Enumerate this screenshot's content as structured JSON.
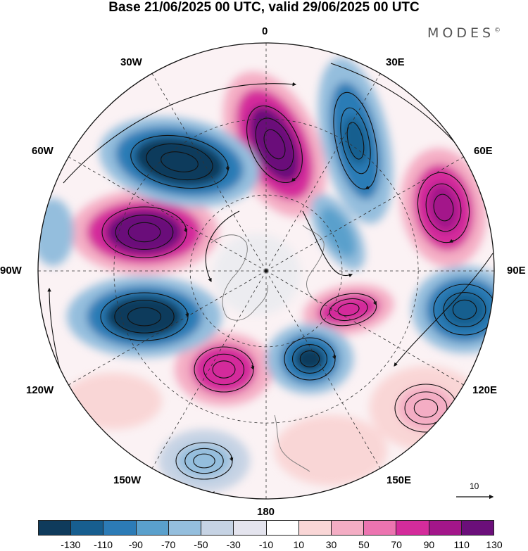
{
  "title": "Base 21/06/2025 00 UTC, valid 29/06/2025 00 UTC",
  "brand": "MODES",
  "brand_mark": "©",
  "longitude_labels": {
    "top": "0",
    "top_right": "30E",
    "upper_right": "60E",
    "right": "90E",
    "lower_right": "120E",
    "bottom_right": "150E",
    "bottom": "180",
    "bottom_left": "150W",
    "lower_left": "120W",
    "left": "90W",
    "upper_left": "60W",
    "top_left": "30W"
  },
  "reference_vector": {
    "label": "10"
  },
  "colorbar": {
    "colors": [
      "#0f3b5c",
      "#175e8f",
      "#2c7bb6",
      "#5aa0cc",
      "#94bedd",
      "#c6d3e4",
      "#e4e4ee",
      "#ffffff",
      "#f9d6d6",
      "#f4adc4",
      "#ec74b0",
      "#d42c9b",
      "#a3168a",
      "#6b0f7a"
    ],
    "ticks": [
      "-130",
      "-110",
      "-90",
      "-70",
      "-50",
      "-30",
      "-10",
      "10",
      "30",
      "50",
      "70",
      "90",
      "110",
      "130"
    ]
  }
}
